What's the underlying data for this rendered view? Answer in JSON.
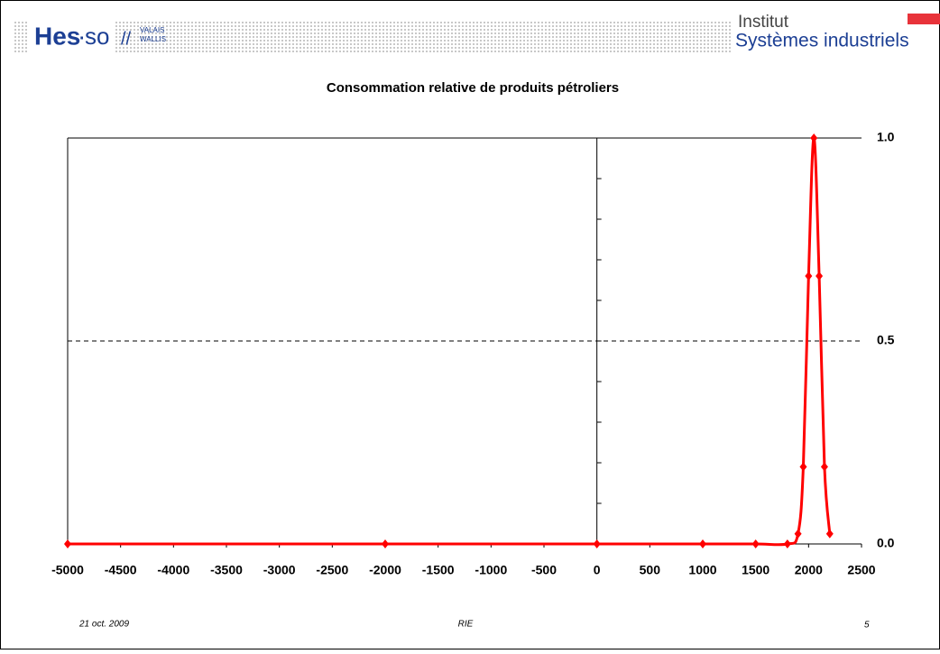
{
  "header": {
    "logo_main": "Hes",
    "logo_dot": "·",
    "logo_so": "so",
    "logo_region_1": "VALAIS",
    "logo_region_2": "WALLIS",
    "institute": "Institut",
    "department": "Systèmes industriels"
  },
  "footer": {
    "date": "21 oct. 2009",
    "center": "RIE",
    "page": "5"
  },
  "chart_data": {
    "type": "line",
    "title": "Consommation relative de produits pétroliers",
    "x": [
      -5000,
      -2000,
      0,
      1000,
      1500,
      1800,
      1900,
      1950,
      2000,
      2050,
      2100,
      2150,
      2200
    ],
    "series": [
      {
        "name": "Consommation relative",
        "color": "#ff0000",
        "values": [
          0,
          0,
          0,
          0,
          0,
          0,
          0.025,
          0.19,
          0.66,
          1.0,
          0.66,
          0.19,
          0.025
        ]
      }
    ],
    "xlim": [
      -5000,
      2500
    ],
    "xticks": [
      -5000,
      -4500,
      -4000,
      -3500,
      -3000,
      -2500,
      -2000,
      -1500,
      -1000,
      -500,
      0,
      500,
      1000,
      1500,
      2000,
      2500
    ],
    "ylim": [
      0,
      1
    ],
    "yticks": [
      {
        "value": 0,
        "label": "0.0"
      },
      {
        "value": 0.5,
        "label": "0.5"
      },
      {
        "value": 1,
        "label": "1.0"
      }
    ],
    "grid": true
  }
}
